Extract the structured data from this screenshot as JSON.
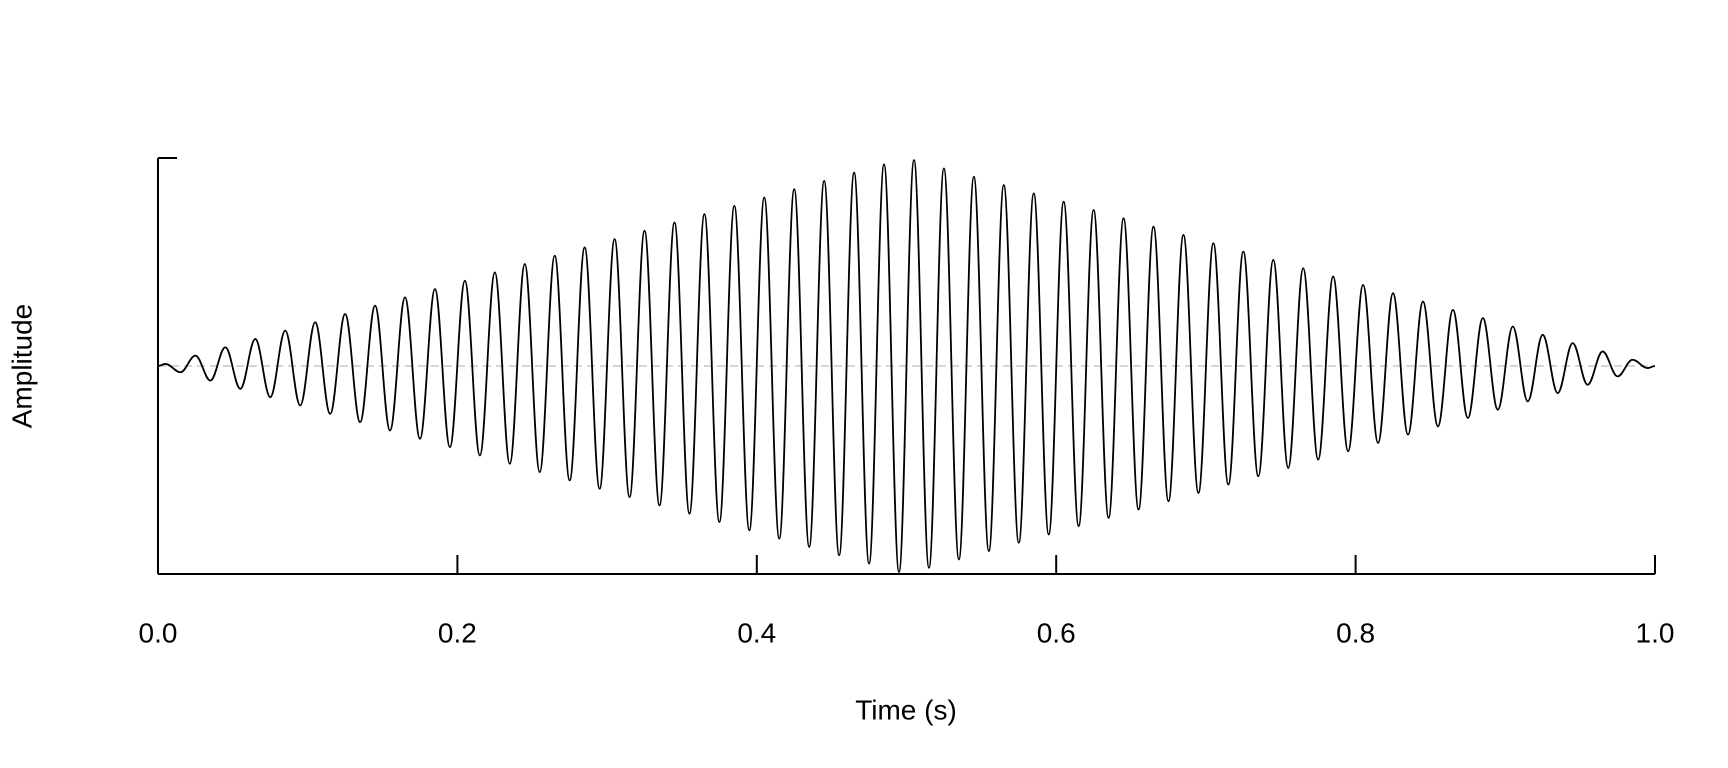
{
  "chart_data": {
    "type": "line",
    "x_label": "Time (s)",
    "y_label": "Amplitude",
    "x": [
      0,
      0.005,
      0.015,
      0.025,
      0.035,
      0.045,
      0.055,
      0.065,
      0.075,
      0.085,
      0.095,
      0.105,
      0.115,
      0.125,
      0.135,
      0.145,
      0.155,
      0.165,
      0.175,
      0.185,
      0.195,
      0.205,
      0.215,
      0.225,
      0.235,
      0.245,
      0.255,
      0.265,
      0.275,
      0.285,
      0.295,
      0.305,
      0.315,
      0.325,
      0.335,
      0.345,
      0.355,
      0.365,
      0.375,
      0.385,
      0.395,
      0.405,
      0.415,
      0.425,
      0.435,
      0.445,
      0.455,
      0.465,
      0.475,
      0.485,
      0.495,
      0.505,
      0.515,
      0.525,
      0.535,
      0.545,
      0.555,
      0.565,
      0.575,
      0.585,
      0.595,
      0.605,
      0.615,
      0.625,
      0.635,
      0.645,
      0.655,
      0.665,
      0.675,
      0.685,
      0.695,
      0.705,
      0.715,
      0.725,
      0.735,
      0.745,
      0.755,
      0.765,
      0.775,
      0.785,
      0.795,
      0.805,
      0.815,
      0.825,
      0.835,
      0.845,
      0.855,
      0.865,
      0.875,
      0.885,
      0.895,
      0.905,
      0.915,
      0.925,
      0.935,
      0.945,
      0.955,
      0.965,
      0.975,
      0.985,
      0.995,
      1
    ],
    "values": [
      0,
      0.01,
      -0.03,
      0.05,
      -0.07,
      0.09,
      -0.11,
      0.13,
      -0.15,
      0.17,
      -0.19,
      0.21,
      -0.23,
      0.25,
      -0.27,
      0.29,
      -0.31,
      0.33,
      -0.35,
      0.37,
      -0.39,
      0.41,
      -0.43,
      0.45,
      -0.47,
      0.49,
      -0.51,
      0.53,
      -0.55,
      0.57,
      -0.59,
      0.61,
      -0.63,
      0.65,
      -0.67,
      0.69,
      -0.71,
      0.73,
      -0.75,
      0.77,
      -0.79,
      0.81,
      -0.83,
      0.85,
      -0.87,
      0.89,
      -0.91,
      0.93,
      -0.95,
      0.97,
      -0.99,
      0.99,
      -0.97,
      0.95,
      -0.93,
      0.91,
      -0.89,
      0.87,
      -0.85,
      0.83,
      -0.81,
      0.79,
      -0.77,
      0.75,
      -0.73,
      0.71,
      -0.69,
      0.67,
      -0.65,
      0.63,
      -0.61,
      0.59,
      -0.57,
      0.55,
      -0.53,
      0.51,
      -0.49,
      0.47,
      -0.45,
      0.43,
      -0.41,
      0.39,
      -0.37,
      0.35,
      -0.33,
      0.31,
      -0.29,
      0.27,
      -0.25,
      0.23,
      -0.21,
      0.19,
      -0.17,
      0.15,
      -0.13,
      0.11,
      -0.09,
      0.07,
      -0.05,
      0.03,
      -0.01,
      0
    ],
    "color": "#000000",
    "xlim": [
      0,
      1
    ],
    "ylim": [
      -1,
      1
    ],
    "xticks": [
      {
        "value": 0,
        "label": "0.0"
      },
      0.2,
      0.4,
      0.6,
      0.8,
      {
        "value": 1,
        "label": "1.0"
      }
    ],
    "zero_line": true
  }
}
